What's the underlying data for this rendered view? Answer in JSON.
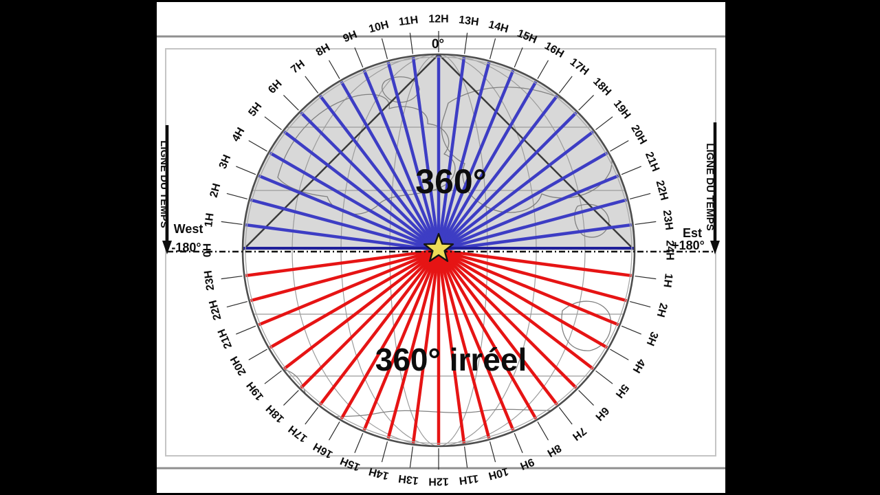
{
  "diagram": {
    "title_upper": "360°",
    "title_lower": "360° irréel",
    "apex_label": "0°",
    "west_label": "West",
    "west_value": "-180°",
    "est_label": "Est",
    "est_value": "+180°",
    "timeline_left_label": "LIGNE DU TEMPS",
    "timeline_right_label": "LIGNE DU TEMPS",
    "hour_step_degrees": 7.5,
    "hours_upper": [
      "0H",
      "1H",
      "2H",
      "3H",
      "4H",
      "5H",
      "6H",
      "7H",
      "8H",
      "9H",
      "10H",
      "11H",
      "12H",
      "13H",
      "14H",
      "15H",
      "16H",
      "17H",
      "18H",
      "19H",
      "20H",
      "21H",
      "22H",
      "23H",
      "24H"
    ],
    "hours_lower": [
      "23H",
      "22H",
      "21H",
      "20H",
      "19H",
      "18H",
      "17H",
      "16H",
      "15H",
      "14H",
      "13H",
      "12H",
      "11H",
      "10H",
      "9H",
      "8H",
      "7H",
      "6H",
      "5H",
      "4H",
      "3H",
      "2H",
      "1H"
    ],
    "colors": {
      "upper_rays": "#3d3dc4",
      "diameter_line": "#1f1f99",
      "lower_rays": "#e61414",
      "upper_fill": "#d8d8d8",
      "star_fill": "#eddc58",
      "frame_background": "#000000",
      "page_background": "#ffffff"
    }
  }
}
